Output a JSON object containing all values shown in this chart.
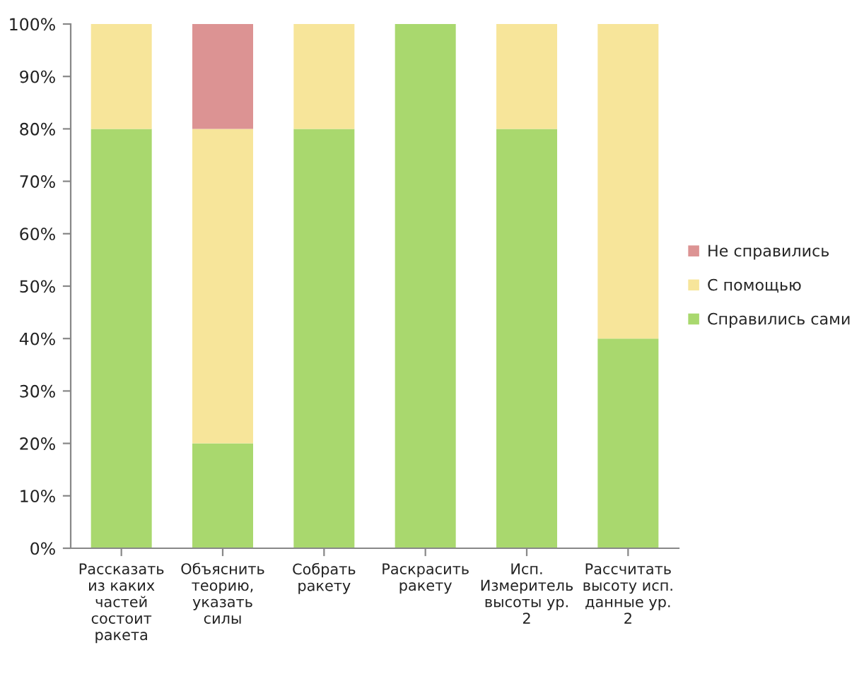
{
  "chart_data": {
    "type": "bar",
    "stacked": true,
    "categories": [
      "Рассказать\nиз каких\nчастей\nсостоит\nракета",
      "Объяснить\nтеорию,\nуказать\nсилы",
      "Собрать\nракету",
      "Раскрасить\nракету",
      "Исп.\nИзмеритель\nвысоты ур.\n2",
      "Рассчитать\nвысоту исп.\nданные ур.\n2"
    ],
    "series": [
      {
        "name": "Справились сами",
        "color": "#a9d86e",
        "values": [
          80,
          20,
          80,
          100,
          80,
          40
        ]
      },
      {
        "name": "С помощью",
        "color": "#f7e59a",
        "values": [
          20,
          60,
          20,
          0,
          20,
          60
        ]
      },
      {
        "name": "Не справились",
        "color": "#dc9393",
        "values": [
          0,
          20,
          0,
          0,
          0,
          0
        ]
      }
    ],
    "ylim": [
      0,
      100
    ],
    "yticks": [
      {
        "value": 0,
        "label": "0%"
      },
      {
        "value": 10,
        "label": "10%"
      },
      {
        "value": 20,
        "label": "20%"
      },
      {
        "value": 30,
        "label": "30%"
      },
      {
        "value": 40,
        "label": "40%"
      },
      {
        "value": 50,
        "label": "50%"
      },
      {
        "value": 60,
        "label": "60%"
      },
      {
        "value": 70,
        "label": "70%"
      },
      {
        "value": 80,
        "label": "80%"
      },
      {
        "value": 90,
        "label": "90%"
      },
      {
        "value": 100,
        "label": "100%"
      }
    ],
    "grid": false,
    "legend": "right"
  }
}
